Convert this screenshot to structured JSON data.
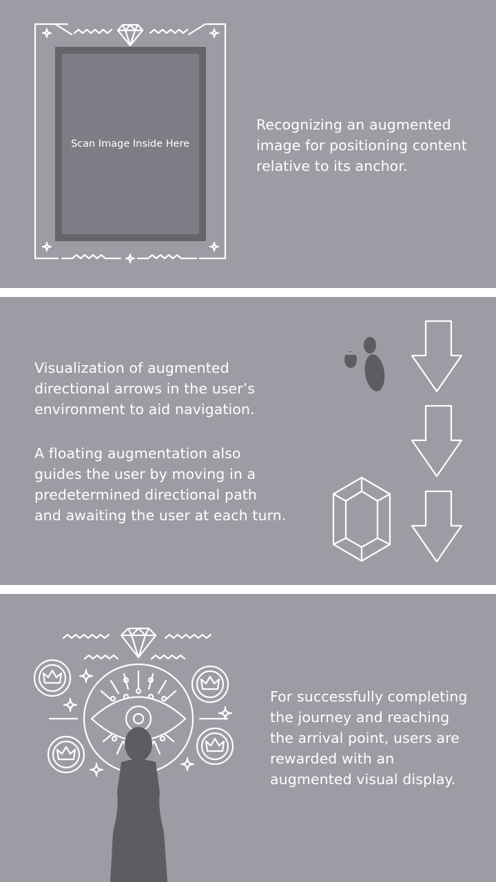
{
  "section_1": {
    "scan_label": "Scan Image Inside Here",
    "description": "Recognizing an augmented\nimage for positioning content\nrelative to its anchor."
  },
  "section_2": {
    "description_1": "Visualization of augmented\ndirectional arrows in the user’s\nenvironment to aid navigation.",
    "description_2": "A floating augmentation also\nguides the user by moving in a\npredetermined directional path\nand awaiting the user at each turn."
  },
  "section_3": {
    "description": "For successfully completing\nthe journey and reaching\nthe arrival point, users are\nrewarded with an\naugmented visual display."
  },
  "colors": {
    "panel_background": "#9d9ca5",
    "divider": "#ffffff",
    "frame_outer": "#65646b",
    "frame_inner": "#7e7d86",
    "figure_dark": "#5d5c62",
    "line_art": "#ffffff"
  },
  "icons": [
    "diamond-icon",
    "sparkle-icon",
    "footprints-icon",
    "down-arrow-icon",
    "hexagon-gem-icon",
    "eye-icon",
    "crown-coin-icon",
    "person-silhouette-icon"
  ]
}
